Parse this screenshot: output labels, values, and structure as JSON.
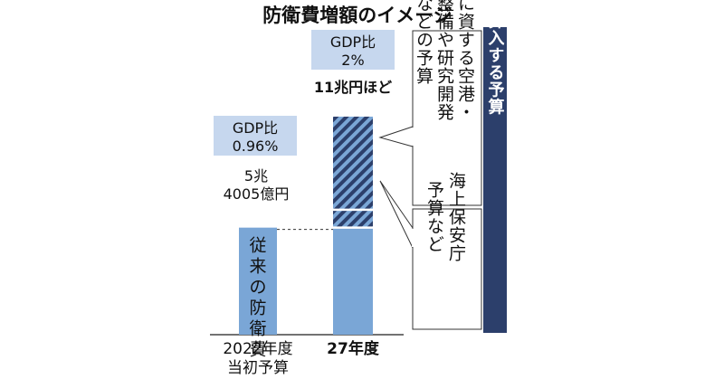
{
  "colors": {
    "bar": "#7aa6d6",
    "bar_dark": "#2c3f6b",
    "label_box": "#c6d7ee",
    "side_band": "#2c3f6b",
    "text": "#111111"
  },
  "chart_data": {
    "type": "bar",
    "title": "防衛費増額のイメージ",
    "categories": [
      "2022年度\n当初予算",
      "27年度"
    ],
    "category_lines": [
      [
        "2022年度",
        "当初予算"
      ],
      [
        "27年度"
      ]
    ],
    "series": [
      {
        "name": "従来の防衛費",
        "values": [
          5.4005,
          5.4005
        ]
      },
      {
        "name": "海上保安庁予算など",
        "values": [
          0,
          0.9
        ]
      },
      {
        "name": "防衛に資する空港・港湾整備や研究開発などの予算",
        "values": [
          0,
          4.7
        ]
      }
    ],
    "ylim": [
      0,
      11.5
    ],
    "bar_labels": [
      {
        "ratio_lines": [
          "GDP比",
          "0.96%"
        ],
        "amount_lines": [
          "5兆",
          "4005億円"
        ]
      },
      {
        "ratio_lines": [
          "GDP比",
          "2%"
        ],
        "amount_lines": [
          "11兆円ほど"
        ]
      }
    ],
    "inner_label": "従来の防衛費",
    "callouts": [
      {
        "lines": [
          "防衛に資する空港・",
          "港湾整備や研究開発",
          "などの予算"
        ]
      },
      {
        "lines": [
          "海上保安庁",
          "予算など"
        ]
      }
    ],
    "side_label": "新たに算入する予算",
    "legend": "none",
    "grid": false
  }
}
